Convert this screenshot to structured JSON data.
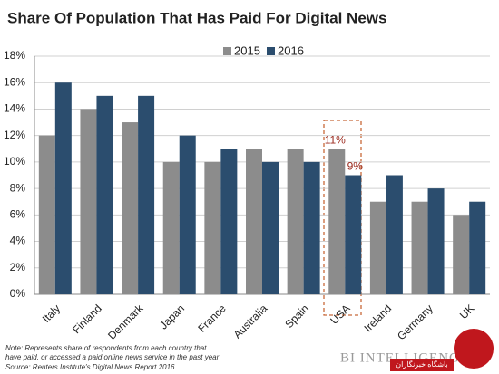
{
  "chart_data": {
    "type": "bar",
    "title": "Share Of Population That Has Paid For Digital News",
    "categories": [
      "Italy",
      "Finland",
      "Denmark",
      "Japan",
      "France",
      "Australia",
      "Spain",
      "USA",
      "Ireland",
      "Germany",
      "UK"
    ],
    "series": [
      {
        "name": "2015",
        "color": "#8c8c8c",
        "values": [
          12,
          14,
          13,
          10,
          10,
          11,
          11,
          11,
          7,
          7,
          6
        ],
        "value_labels": [
          null,
          null,
          null,
          null,
          null,
          null,
          null,
          "11%",
          null,
          null,
          null
        ]
      },
      {
        "name": "2016",
        "color": "#2b4d6e",
        "values": [
          16,
          15,
          15,
          12,
          11,
          10,
          10,
          9,
          9,
          8,
          7
        ],
        "value_labels": [
          null,
          null,
          null,
          null,
          null,
          null,
          null,
          "9%",
          null,
          null,
          null
        ]
      }
    ],
    "ylim": [
      0,
      18
    ],
    "yticks": [
      {
        "value": 0,
        "label": "0%"
      },
      {
        "value": 2,
        "label": "2%"
      },
      {
        "value": 4,
        "label": "4%"
      },
      {
        "value": 6,
        "label": "6%"
      },
      {
        "value": 8,
        "label": "8%"
      },
      {
        "value": 10,
        "label": "10%"
      },
      {
        "value": 12,
        "label": "12%"
      },
      {
        "value": 14,
        "label": "14%"
      },
      {
        "value": 16,
        "label": "16%"
      },
      {
        "value": 18,
        "label": "18%"
      }
    ],
    "grid": true,
    "note": [
      "Note: Represents share of respondents from each country that",
      "have paid, or accessed a paid online news service in the past year"
    ],
    "source": "Source: Reuters Institute's Digital News Report 2016",
    "watermark": "BI INTELLIGENCE",
    "logo_text": "باشگاه خبرنگاران"
  }
}
